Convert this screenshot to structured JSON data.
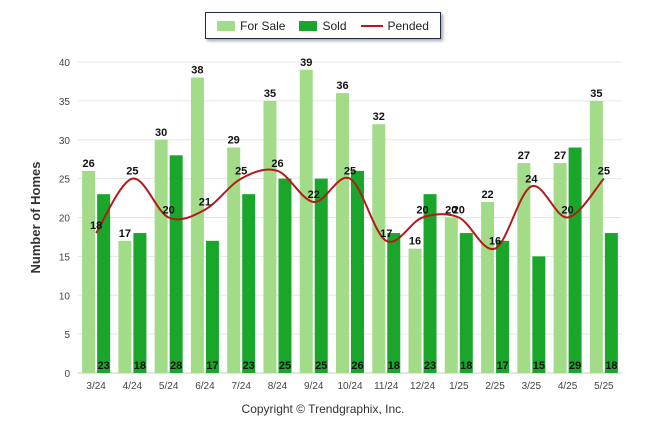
{
  "chart_data": {
    "type": "bar",
    "ylabel": "Number of Homes",
    "ylim": [
      0,
      40
    ],
    "yticks": [
      0,
      5,
      10,
      15,
      20,
      25,
      30,
      35,
      40
    ],
    "categories": [
      "3/24",
      "4/24",
      "5/24",
      "6/24",
      "7/24",
      "8/24",
      "9/24",
      "10/24",
      "11/24",
      "12/24",
      "1/25",
      "2/25",
      "3/25",
      "4/25",
      "5/25"
    ],
    "legend_position": "top-center",
    "series": [
      {
        "name": "For Sale",
        "kind": "bar",
        "color": "#a3dc88",
        "values": [
          26,
          17,
          30,
          38,
          29,
          35,
          39,
          36,
          32,
          16,
          20,
          22,
          27,
          27,
          35
        ]
      },
      {
        "name": "Sold",
        "kind": "bar",
        "color": "#19a62b",
        "values": [
          23,
          18,
          28,
          17,
          23,
          25,
          25,
          26,
          18,
          23,
          18,
          17,
          15,
          29,
          18
        ]
      },
      {
        "name": "Pended",
        "kind": "line",
        "color": "#b41a1a",
        "values": [
          18,
          25,
          20,
          21,
          25,
          26,
          22,
          25,
          17,
          20,
          20,
          16,
          24,
          20,
          25
        ]
      }
    ]
  },
  "copyright": "Copyright © Trendgraphix, Inc."
}
